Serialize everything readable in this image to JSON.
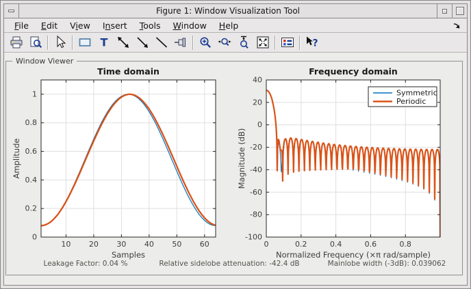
{
  "window": {
    "title": "Figure 1: Window Visualization Tool"
  },
  "titlebar": {
    "icons": [
      "window-menu-icon",
      "minimize-icon",
      "maximize-icon"
    ]
  },
  "menu": {
    "items": [
      {
        "label": "File",
        "underline": 0
      },
      {
        "label": "Edit",
        "underline": 0
      },
      {
        "label": "View",
        "underline": 1
      },
      {
        "label": "Insert",
        "underline": 1
      },
      {
        "label": "Tools",
        "underline": 0
      },
      {
        "label": "Window",
        "underline": 0
      },
      {
        "label": "Help",
        "underline": 0
      }
    ],
    "dock_icon": "dock-figure-arrow-icon"
  },
  "toolbar": {
    "icons": [
      "print-icon",
      "print-preview-icon",
      "edit-plot-pointer-icon",
      "insert-rectangle-icon",
      "insert-text-icon",
      "insert-double-arrow-icon",
      "insert-arrow-icon",
      "insert-line-icon",
      "pin-to-axes-icon",
      "zoom-in-icon",
      "zoom-x-icon",
      "zoom-y-icon",
      "restore-view-icon",
      "legend-icon",
      "whats-this-icon"
    ]
  },
  "panel": {
    "label": "Window Viewer"
  },
  "status": {
    "leakage": "Leakage Factor: 0.04 %",
    "sidelobe": "Relative sidelobe attenuation: -42.4 dB",
    "mainlobe": "Mainlobe width (-3dB): 0.039062"
  },
  "colors": {
    "symmetric": "#0072BD",
    "periodic": "#D95319",
    "grid": "#dfdfdf",
    "axes": "#262626",
    "figure_bg": "#ececea"
  },
  "chart_data": [
    {
      "type": "line",
      "title": "Time domain",
      "xlabel": "Samples",
      "ylabel": "Amplitude",
      "xlim": [
        1,
        64
      ],
      "ylim": [
        0,
        1.1
      ],
      "xticks": [
        10,
        20,
        30,
        40,
        50,
        60
      ],
      "yticks": [
        0,
        0.2,
        0.4,
        0.6,
        0.8,
        1
      ],
      "grid": true,
      "series": [
        {
          "name": "Symmetric",
          "color": "#0072BD",
          "linewidth": 1.2,
          "generator": {
            "window": "hamming",
            "N": 64,
            "alpha": 0.54,
            "beta": 0.46,
            "sampling": "symmetric"
          },
          "keypoints": [
            [
              1,
              0.08
            ],
            [
              17,
              0.556
            ],
            [
              32,
              0.9994
            ],
            [
              33,
              0.9994
            ],
            [
              48,
              0.575
            ],
            [
              64,
              0.08
            ]
          ]
        },
        {
          "name": "Periodic",
          "color": "#D95319",
          "linewidth": 2.3,
          "generator": {
            "window": "hamming",
            "N": 64,
            "alpha": 0.54,
            "beta": 0.46,
            "sampling": "periodic"
          },
          "keypoints": [
            [
              1,
              0.08
            ],
            [
              17,
              0.54
            ],
            [
              33,
              1.0
            ],
            [
              49,
              0.54
            ],
            [
              64,
              0.0822
            ]
          ]
        }
      ]
    },
    {
      "type": "line",
      "title": "Frequency domain",
      "xlabel": "Normalized Frequency  (×π rad/sample)",
      "ylabel": "Magnitude (dB)",
      "xlim": [
        0,
        1
      ],
      "ylim": [
        -100,
        40
      ],
      "xticks": [
        0,
        0.2,
        0.4,
        0.6,
        0.8
      ],
      "yticks": [
        40,
        20,
        0,
        -20,
        -40,
        -60,
        -80,
        -100
      ],
      "grid": true,
      "legend": {
        "position": "northeast",
        "entries": [
          "Symmetric",
          "Periodic"
        ]
      },
      "series": [
        {
          "name": "Symmetric",
          "color": "#0072BD",
          "linewidth": 1.1,
          "generator": {
            "transform": "dtft_magnitude_db",
            "window": "hamming",
            "N": 64,
            "alpha": 0.54,
            "beta": 0.46,
            "sampling": "symmetric",
            "nfft": 512
          },
          "features": {
            "peak_db": 30.7,
            "relative_sidelobe_db": -42.4,
            "sidelobe_peaks_decay_db": [
              -16,
              -25
            ],
            "deepest_null_db": -86
          }
        },
        {
          "name": "Periodic",
          "color": "#D95319",
          "linewidth": 2.2,
          "generator": {
            "transform": "dtft_magnitude_db",
            "window": "hamming",
            "N": 64,
            "alpha": 0.54,
            "beta": 0.46,
            "sampling": "periodic",
            "nfft": 512
          },
          "features": {
            "peak_db": 30.8,
            "relative_sidelobe_db": -42.4,
            "sidelobe_peaks_decay_db": [
              -16,
              -23
            ],
            "deepest_null_db": -63
          }
        }
      ]
    }
  ]
}
